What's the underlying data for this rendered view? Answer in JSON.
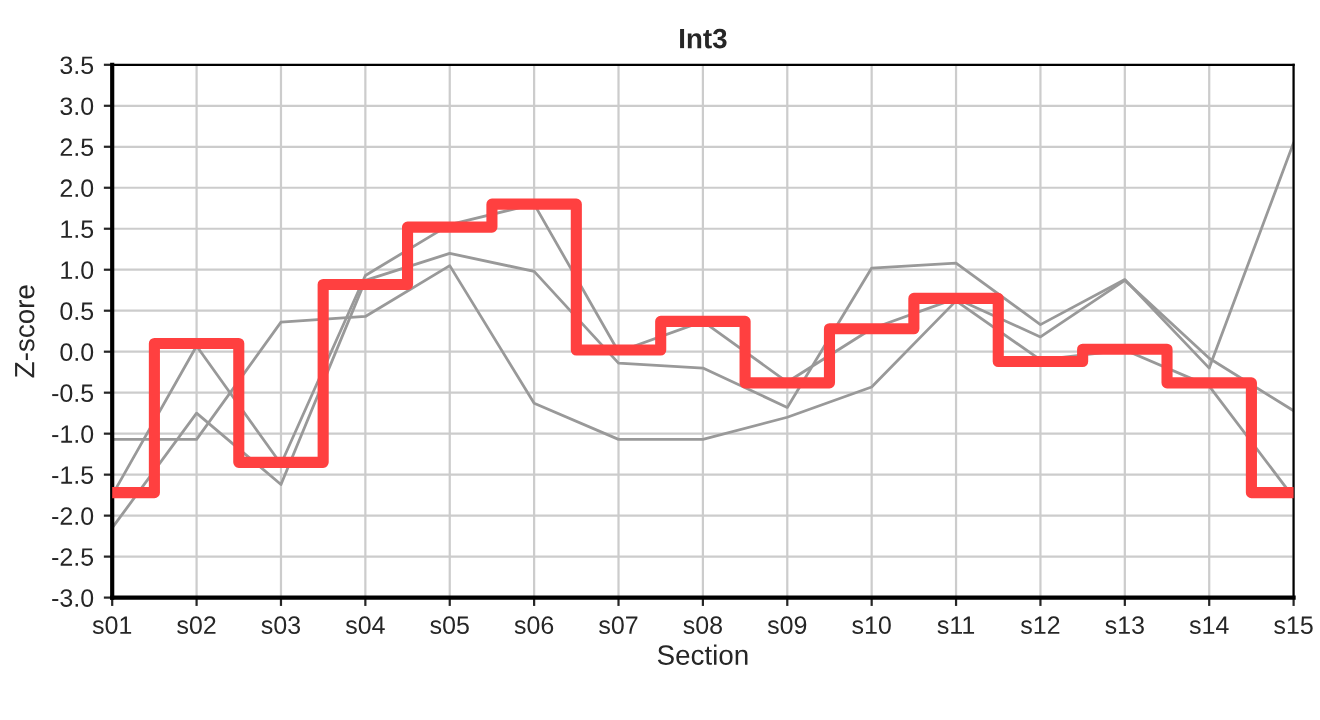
{
  "chart_data": {
    "type": "line",
    "title": "Int3",
    "xlabel": "Section",
    "ylabel": "Z-score",
    "categories": [
      "s01",
      "s02",
      "s03",
      "s04",
      "s05",
      "s06",
      "s07",
      "s08",
      "s09",
      "s10",
      "s11",
      "s12",
      "s13",
      "s14",
      "s15"
    ],
    "series": [
      {
        "color": "#999999",
        "values": [
          -1.07,
          -1.07,
          0.36,
          0.43,
          1.05,
          -0.63,
          -1.07,
          -1.07,
          -0.8,
          -0.43,
          0.62,
          -0.1,
          0.02,
          -0.42,
          -1.78
        ]
      },
      {
        "color": "#999999",
        "values": [
          -1.75,
          0.07,
          -1.37,
          0.93,
          1.55,
          1.8,
          0.0,
          0.37,
          -0.37,
          0.28,
          0.65,
          0.18,
          0.87,
          -0.08,
          -0.72
        ]
      },
      {
        "color": "#999999",
        "values": [
          -2.15,
          -0.75,
          -1.62,
          0.87,
          1.2,
          0.98,
          -0.14,
          -0.2,
          -0.68,
          1.02,
          1.08,
          0.33,
          0.88,
          -0.2,
          2.55
        ]
      },
      {
        "type": "step",
        "color": "#ff4040",
        "values": [
          -1.72,
          0.1,
          -1.35,
          0.82,
          1.52,
          1.8,
          0.02,
          0.37,
          -0.38,
          0.28,
          0.65,
          -0.12,
          0.03,
          -0.38,
          -1.72
        ]
      }
    ],
    "ylim": [
      -3.0,
      3.5
    ],
    "yticks": [
      {
        "value": -3,
        "label": "-3.0"
      },
      {
        "value": -2.5,
        "label": "-2.5"
      },
      {
        "value": -2,
        "label": "-2.0"
      },
      {
        "value": -1.5,
        "label": "-1.5"
      },
      {
        "value": -1,
        "label": "-1.0"
      },
      {
        "value": -0.5,
        "label": "-0.5"
      },
      {
        "value": 0,
        "label": "0.0"
      },
      {
        "value": 0.5,
        "label": "0.5"
      },
      {
        "value": 1,
        "label": "1.0"
      },
      {
        "value": 1.5,
        "label": "1.5"
      },
      {
        "value": 2,
        "label": "2.0"
      },
      {
        "value": 2.5,
        "label": "2.5"
      },
      {
        "value": 3,
        "label": "3.0"
      },
      {
        "value": 3.5,
        "label": "3.5"
      }
    ],
    "grid": true,
    "marker": "none"
  }
}
